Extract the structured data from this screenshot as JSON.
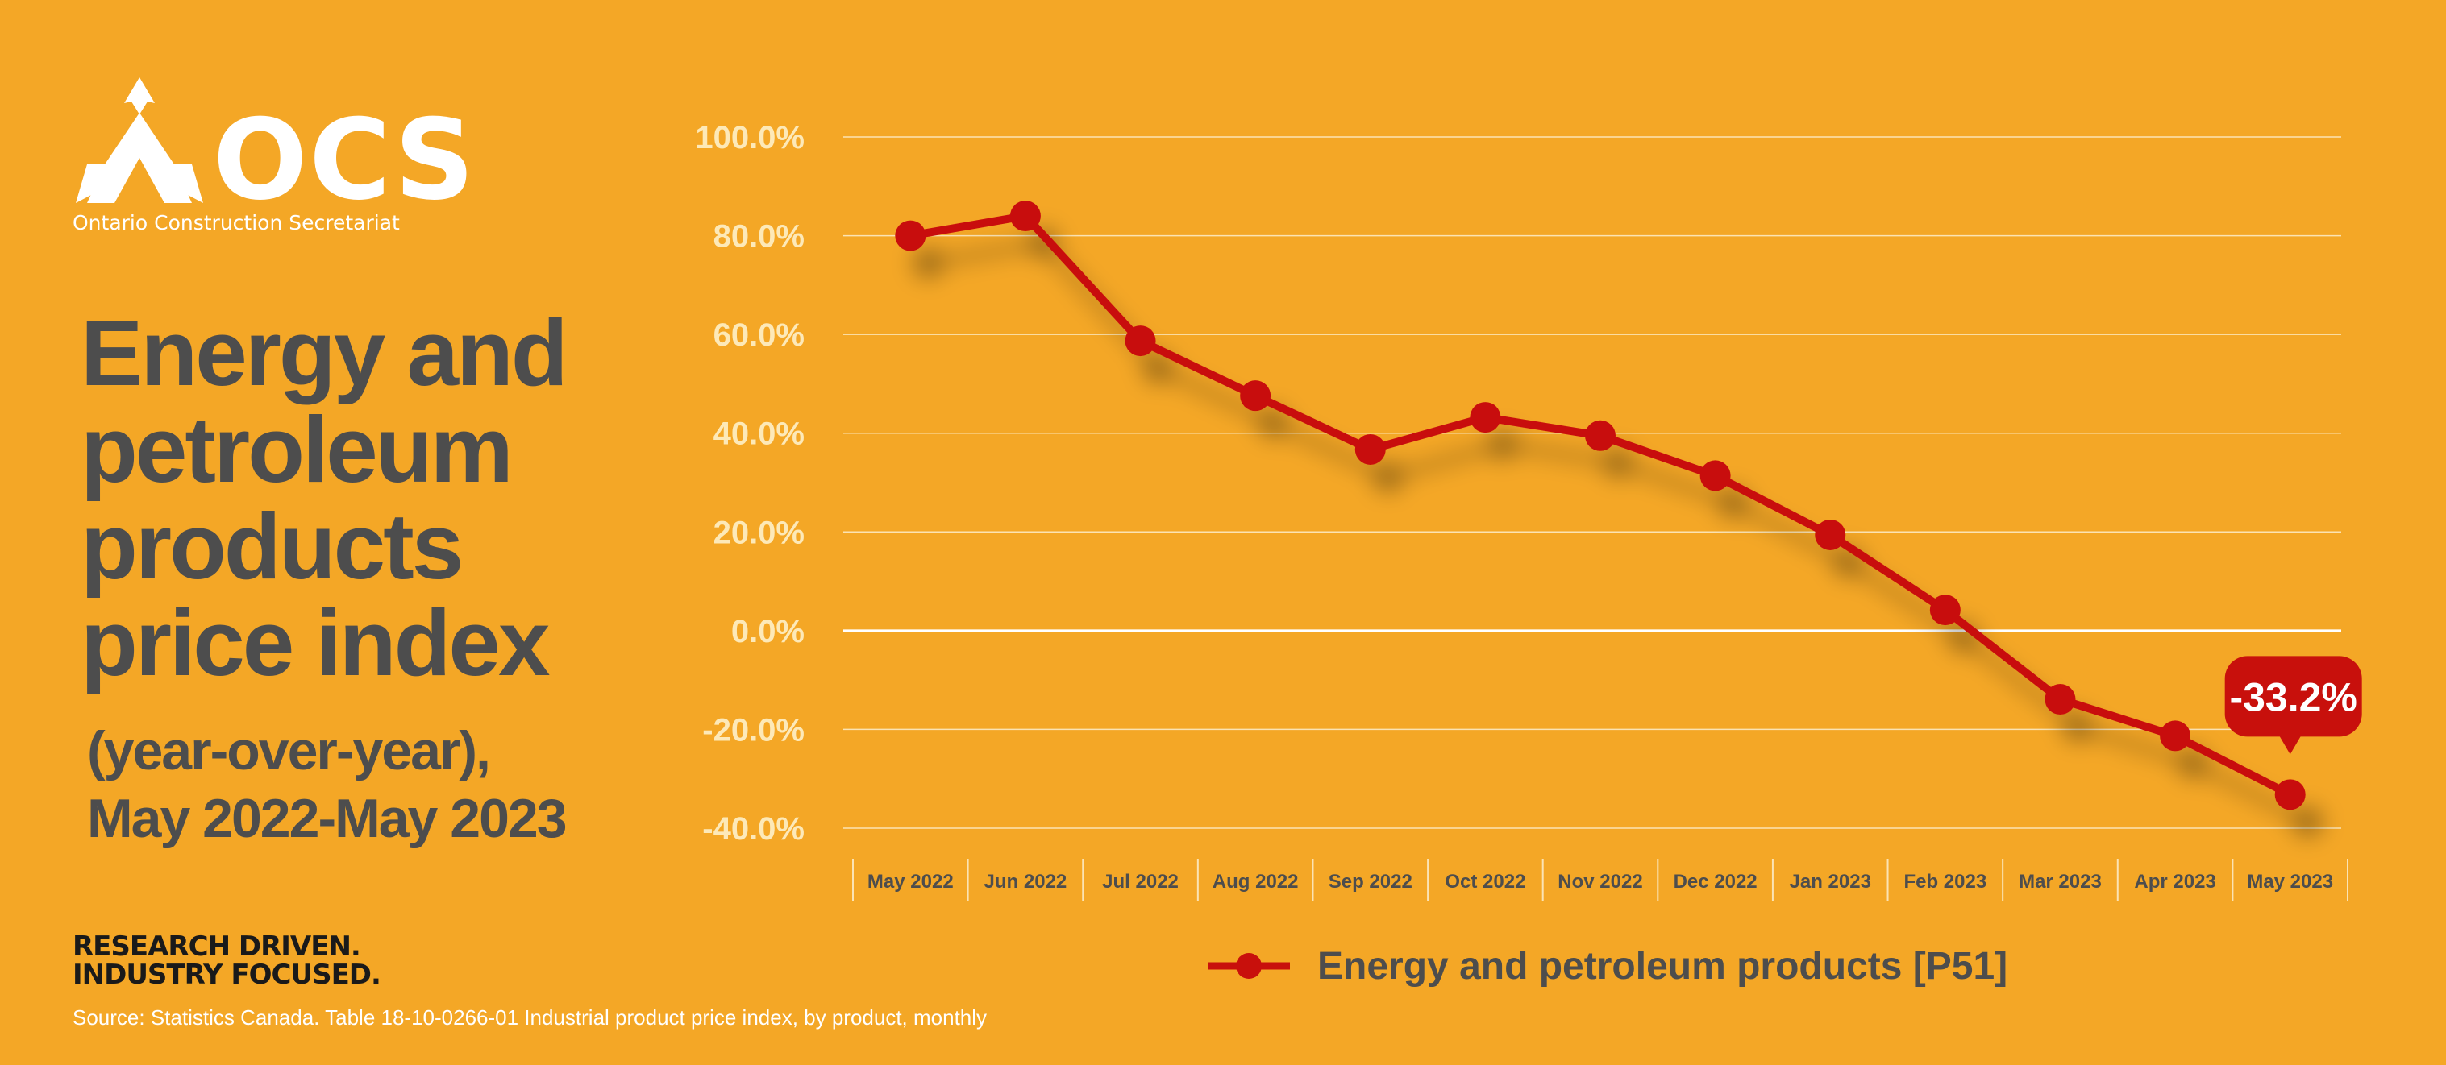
{
  "brand": {
    "name": "OCS",
    "subtitle": "Ontario Construction Secretariat",
    "tagline_1": "RESEARCH DRIVEN.",
    "tagline_2": "INDUSTRY FOCUSED.",
    "color_text": "#ffffff"
  },
  "heading": {
    "title": "Energy and petroleum products price index",
    "subtitle_1": "(year-over-year),",
    "subtitle_2": "May 2022-May 2023"
  },
  "source": "Source: Statistics Canada. Table 18-10-0266-01  Industrial product price index, by product, monthly",
  "colors": {
    "background": "#F4A726",
    "series": "#C8100C",
    "title_text": "#4d4d4d",
    "gridline": "#fbe3b3"
  },
  "chart_data": {
    "type": "line",
    "categories": [
      "May 2022",
      "Jun 2022",
      "Jul 2022",
      "Aug 2022",
      "Sep 2022",
      "Oct 2022",
      "Nov 2022",
      "Dec 2022",
      "Jan 2023",
      "Feb 2023",
      "Mar 2023",
      "Apr 2023",
      "May 2023"
    ],
    "series": [
      {
        "name": "Energy and petroleum products [P51]",
        "values": [
          80.0,
          84.0,
          58.7,
          47.6,
          36.7,
          43.2,
          39.5,
          31.4,
          19.4,
          4.2,
          -13.9,
          -21.3,
          -33.2
        ]
      }
    ],
    "y_ticks": [
      "100.0%",
      "80.0%",
      "60.0%",
      "40.0%",
      "20.0%",
      "0.0%",
      "-20.0%",
      "-40.0%"
    ],
    "ylim": [
      -40,
      100
    ],
    "y_tick_values": [
      100,
      80,
      60,
      40,
      20,
      0,
      -20,
      -40
    ],
    "annotation": {
      "label": "-33.2%",
      "category": "May 2023"
    },
    "grid": true,
    "legend": "bottom-center"
  }
}
